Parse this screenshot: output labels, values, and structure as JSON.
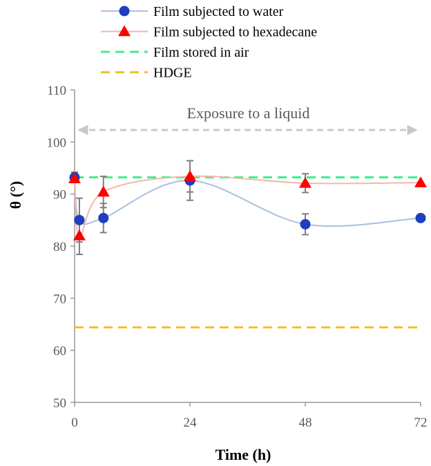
{
  "chart_data": {
    "type": "line",
    "title": "",
    "xlabel": "Time (h)",
    "ylabel": "θ (°)",
    "xlim": [
      0,
      72
    ],
    "ylim": [
      50,
      110
    ],
    "x_ticks": [
      "0",
      "24",
      "48",
      "72"
    ],
    "y_ticks": [
      "50",
      "60",
      "70",
      "80",
      "90",
      "100",
      "110"
    ],
    "legend_position": "top",
    "series": [
      {
        "name": "Film subjected to water",
        "color": "#1f3fbf",
        "line_color": "#a9bfe0",
        "marker": "circle",
        "x": [
          0,
          1,
          6,
          24,
          48,
          72
        ],
        "y": [
          93.2,
          85.0,
          85.4,
          92.6,
          84.2,
          85.4
        ],
        "error": [
          1.0,
          4.2,
          2.8,
          3.8,
          2.0,
          0
        ]
      },
      {
        "name": "Film subjected to hexadecane",
        "color": "#ff0000",
        "line_color": "#f4b6a8",
        "marker": "triangle",
        "x": [
          0,
          1,
          6,
          24,
          48,
          72
        ],
        "y": [
          93.0,
          82.0,
          90.4,
          93.4,
          92.1,
          92.2
        ],
        "error": [
          0.6,
          3.6,
          3.0,
          3.0,
          1.8,
          0
        ]
      },
      {
        "name": "Film stored in air",
        "color": "#3cf08a",
        "style": "dashed",
        "x": [
          0,
          72
        ],
        "y": [
          93.2,
          93.2
        ]
      },
      {
        "name": "HDGE",
        "color": "#f5c02c",
        "style": "dashed",
        "x": [
          0,
          72
        ],
        "y": [
          64.4,
          64.4
        ]
      }
    ],
    "annotations": [
      {
        "text": "Exposure to a liquid",
        "x_start": 0,
        "x_end": 72,
        "y": 102.3,
        "color": "#bfbfbf"
      }
    ],
    "grid": false
  }
}
